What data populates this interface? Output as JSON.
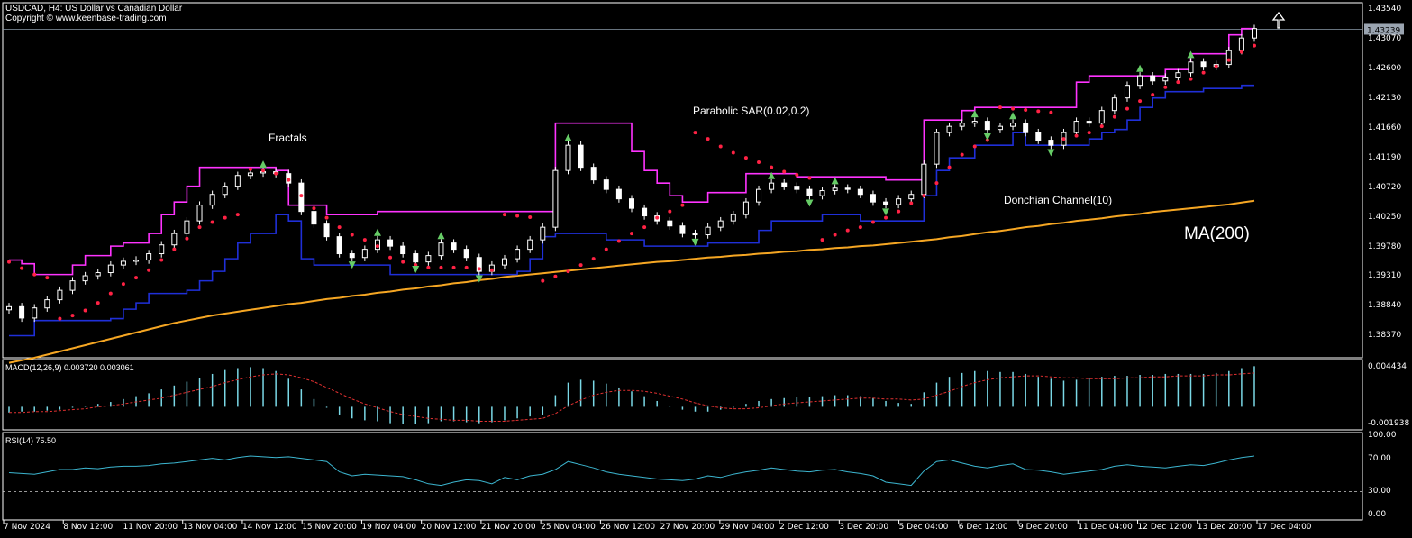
{
  "header": {
    "symbol_line": "USDCAD, H4:  US Dollar vs Canadian Dollar",
    "copyright": "Copyright © www.keenbase-trading.com"
  },
  "annotations": {
    "fractals": "Fractals",
    "parabolic_sar": "Parabolic SAR(0.02,0.2)",
    "donchian": "Donchian Channel(10)",
    "ma200": "MA(200)"
  },
  "colors": {
    "background": "#000000",
    "candle_up": "#ffffff",
    "candle_down": "#ffffff",
    "donchian_upper": "#ff33ff",
    "donchian_lower": "#1f2fd8",
    "sar": "#ff2244",
    "ma200": "#f5a623",
    "fractal": "#66cc66",
    "macd_hist": "#7ad8e6",
    "macd_signal": "#e03030",
    "rsi": "#3cb6d0",
    "annotation_text": "#3fd04f",
    "ma_text": "#f5a623",
    "grid_text": "#ffffff"
  },
  "main_axis": {
    "ticks": [
      "1.43540",
      "1.43070",
      "1.42600",
      "1.42130",
      "1.41660",
      "1.41190",
      "1.40720",
      "1.40250",
      "1.39780",
      "1.39310",
      "1.38840",
      "1.38370"
    ],
    "current_price": "1.43239",
    "range": [
      1.3803,
      1.4366
    ]
  },
  "macd": {
    "label": "MACD(12,26,9) 0.003720 0.003061",
    "max_label": "0.004434",
    "min_label": "-0.001938",
    "range": [
      -0.0022,
      0.0047
    ]
  },
  "rsi": {
    "label": "RSI(14) 75.50",
    "ticks": [
      "100.00",
      "70.00",
      "30.00",
      "0.00"
    ],
    "levels": [
      70,
      30
    ]
  },
  "x_axis": {
    "labels": [
      "7 Nov 2024",
      "8 Nov 12:00",
      "11 Nov 20:00",
      "13 Nov 04:00",
      "14 Nov 12:00",
      "15 Nov 20:00",
      "19 Nov 04:00",
      "20 Nov 12:00",
      "21 Nov 20:00",
      "25 Nov 04:00",
      "26 Nov 12:00",
      "27 Nov 20:00",
      "29 Nov 04:00",
      "2 Dec 12:00",
      "3 Dec 20:00",
      "5 Dec 04:00",
      "6 Dec 12:00",
      "9 Dec 20:00",
      "11 Dec 04:00",
      "12 Dec 12:00",
      "13 Dec 20:00",
      "17 Dec 04:00"
    ]
  },
  "chart_data": {
    "type": "line",
    "title": "USDCAD, H4:  US Dollar vs Canadian Dollar",
    "series": [
      {
        "name": "Close",
        "values": [
          1.3884,
          1.3866,
          1.3882,
          1.3895,
          1.391,
          1.3925,
          1.3933,
          1.3938,
          1.395,
          1.3956,
          1.3958,
          1.3968,
          1.3982,
          1.4,
          1.402,
          1.4045,
          1.4062,
          1.4075,
          1.4092,
          1.4096,
          1.4098,
          1.4095,
          1.408,
          1.4035,
          1.4015,
          1.3995,
          1.3968,
          1.3962,
          1.3975,
          1.399,
          1.398,
          1.3968,
          1.3955,
          1.3965,
          1.3985,
          1.3975,
          1.3962,
          1.394,
          1.395,
          1.396,
          1.3975,
          1.399,
          1.401,
          1.41,
          1.414,
          1.4105,
          1.4085,
          1.407,
          1.4055,
          1.404,
          1.4028,
          1.402,
          1.4012,
          1.4,
          1.3998,
          1.401,
          1.402,
          1.403,
          1.405,
          1.407,
          1.408,
          1.4075,
          1.407,
          1.406,
          1.4068,
          1.4072,
          1.407,
          1.4062,
          1.405,
          1.4046,
          1.4055,
          1.4062,
          1.411,
          1.416,
          1.417,
          1.4175,
          1.4178,
          1.4165,
          1.417,
          1.4175,
          1.416,
          1.4148,
          1.414,
          1.416,
          1.4178,
          1.4175,
          1.4195,
          1.4215,
          1.4235,
          1.425,
          1.4242,
          1.4248,
          1.4255,
          1.4272,
          1.4265,
          1.4268,
          1.429,
          1.431,
          1.4325
        ]
      },
      {
        "name": "Donchian upper",
        "values": [
          1.3958,
          1.3952,
          1.3935,
          1.3935,
          1.3935,
          1.395,
          1.3965,
          1.3965,
          1.398,
          1.3985,
          1.3985,
          1.4,
          1.403,
          1.405,
          1.4075,
          1.4105,
          1.4105,
          1.4105,
          1.4105,
          1.4105,
          1.4105,
          1.41,
          1.4045,
          1.4045,
          1.4045,
          1.403,
          1.403,
          1.403,
          1.403,
          1.4035,
          1.4035,
          1.4035,
          1.4035,
          1.4035,
          1.4035,
          1.4035,
          1.4035,
          1.4035,
          1.4035,
          1.4035,
          1.4035,
          1.4035,
          1.4035,
          1.4175,
          1.4175,
          1.4175,
          1.4175,
          1.4175,
          1.4175,
          1.413,
          1.41,
          1.408,
          1.406,
          1.405,
          1.405,
          1.4065,
          1.4065,
          1.4065,
          1.4095,
          1.4095,
          1.4095,
          1.4095,
          1.409,
          1.409,
          1.409,
          1.409,
          1.409,
          1.409,
          1.409,
          1.4085,
          1.4085,
          1.4085,
          1.418,
          1.418,
          1.418,
          1.4195,
          1.42,
          1.42,
          1.42,
          1.42,
          1.42,
          1.42,
          1.42,
          1.42,
          1.424,
          1.425,
          1.425,
          1.425,
          1.425,
          1.425,
          1.425,
          1.426,
          1.426,
          1.4285,
          1.4285,
          1.4285,
          1.4315,
          1.4325,
          1.4325
        ]
      },
      {
        "name": "Donchian lower",
        "values": [
          1.3838,
          1.3838,
          1.3862,
          1.3862,
          1.3862,
          1.3862,
          1.3862,
          1.3862,
          1.3865,
          1.388,
          1.389,
          1.3905,
          1.3905,
          1.3905,
          1.391,
          1.3925,
          1.394,
          1.396,
          1.3985,
          1.4,
          1.4,
          1.403,
          1.402,
          1.396,
          1.395,
          1.395,
          1.395,
          1.395,
          1.395,
          1.395,
          1.3935,
          1.3935,
          1.3935,
          1.3935,
          1.3935,
          1.3935,
          1.3935,
          1.3935,
          1.3935,
          1.3935,
          1.394,
          1.396,
          1.3995,
          1.4,
          1.4,
          1.4,
          1.4,
          1.399,
          1.399,
          1.399,
          1.398,
          1.398,
          1.398,
          1.398,
          1.398,
          1.3985,
          1.3985,
          1.3985,
          1.3985,
          1.4005,
          1.402,
          1.402,
          1.402,
          1.402,
          1.403,
          1.403,
          1.403,
          1.402,
          1.402,
          1.402,
          1.402,
          1.402,
          1.406,
          1.41,
          1.412,
          1.412,
          1.414,
          1.414,
          1.414,
          1.416,
          1.414,
          1.414,
          1.414,
          1.414,
          1.414,
          1.415,
          1.416,
          1.4165,
          1.418,
          1.42,
          1.4215,
          1.4225,
          1.4225,
          1.4225,
          1.423,
          1.423,
          1.423,
          1.4235,
          1.4235
        ]
      },
      {
        "name": "MA(200)",
        "values": [
          1.3795,
          1.3799,
          1.3803,
          1.3808,
          1.3813,
          1.3818,
          1.3823,
          1.3828,
          1.3833,
          1.3838,
          1.3843,
          1.3848,
          1.3853,
          1.3858,
          1.3862,
          1.3866,
          1.387,
          1.3873,
          1.3876,
          1.3879,
          1.3882,
          1.3885,
          1.3888,
          1.389,
          1.3893,
          1.3896,
          1.3898,
          1.3901,
          1.3903,
          1.3906,
          1.3908,
          1.3911,
          1.3913,
          1.3916,
          1.3918,
          1.3921,
          1.3923,
          1.3926,
          1.3928,
          1.3931,
          1.3933,
          1.3935,
          1.3937,
          1.3939,
          1.3941,
          1.3943,
          1.3945,
          1.3947,
          1.3949,
          1.3951,
          1.3953,
          1.3955,
          1.3956,
          1.3958,
          1.396,
          1.3962,
          1.3963,
          1.3965,
          1.3966,
          1.3968,
          1.3969,
          1.3971,
          1.3972,
          1.3974,
          1.3975,
          1.3977,
          1.3978,
          1.398,
          1.3981,
          1.3983,
          1.3985,
          1.3987,
          1.3989,
          1.3991,
          1.3994,
          1.3996,
          1.3999,
          1.4002,
          1.4004,
          1.4007,
          1.401,
          1.4012,
          1.4015,
          1.4017,
          1.402,
          1.4022,
          1.4024,
          1.4027,
          1.4029,
          1.4031,
          1.4034,
          1.4036,
          1.4038,
          1.404,
          1.4042,
          1.4044,
          1.4046,
          1.4049,
          1.4052
        ]
      },
      {
        "name": "Parabolic SAR",
        "values": [
          1.3955,
          1.3945,
          1.3935,
          1.393,
          1.3865,
          1.387,
          1.3878,
          1.389,
          1.3905,
          1.392,
          1.393,
          1.3942,
          1.3958,
          1.3975,
          1.3992,
          1.401,
          1.4018,
          1.4025,
          1.403,
          1.4102,
          1.41,
          1.4095,
          1.4085,
          1.406,
          1.404,
          1.4025,
          1.401,
          1.3998,
          1.399,
          1.398,
          1.3962,
          1.3955,
          1.395,
          1.3946,
          1.3946,
          1.3946,
          1.3946,
          1.3944,
          1.3942,
          1.403,
          1.4028,
          1.4026,
          1.3925,
          1.3932,
          1.394,
          1.395,
          1.396,
          1.3975,
          1.3988,
          1.4,
          1.401,
          1.4025,
          1.4035,
          1.4045,
          1.416,
          1.415,
          1.4138,
          1.4128,
          1.412,
          1.4113,
          1.4105,
          1.4098,
          1.4093,
          1.4088,
          1.399,
          1.3998,
          1.4005,
          1.401,
          1.4018,
          1.4025,
          1.4035,
          1.4048,
          1.406,
          1.408,
          1.4105,
          1.4125,
          1.4138,
          1.4148,
          1.42,
          1.4198,
          1.4196,
          1.4194,
          1.4192,
          1.415,
          1.4155,
          1.416,
          1.417,
          1.4185,
          1.4198,
          1.421,
          1.422,
          1.4232,
          1.424,
          1.4245,
          1.4255,
          1.4265,
          1.4275,
          1.4288,
          1.4298
        ]
      },
      {
        "name": "MACD",
        "values": [
          -0.0006,
          -0.0005,
          -0.0005,
          -0.0004,
          -0.0003,
          -0.0001,
          0.0001,
          0.0003,
          0.0005,
          0.0008,
          0.0011,
          0.0014,
          0.0018,
          0.0022,
          0.0026,
          0.003,
          0.0034,
          0.0038,
          0.004,
          0.0041,
          0.004,
          0.0037,
          0.0029,
          0.0018,
          0.0008,
          -0.0001,
          -0.0008,
          -0.0012,
          -0.0014,
          -0.0015,
          -0.0017,
          -0.0018,
          -0.0018,
          -0.0017,
          -0.0015,
          -0.0015,
          -0.0016,
          -0.0017,
          -0.0016,
          -0.0014,
          -0.0012,
          -0.001,
          -0.0008,
          0.0012,
          0.0025,
          0.0028,
          0.0027,
          0.0024,
          0.002,
          0.0016,
          0.0011,
          0.0006,
          0.0001,
          -0.0003,
          -0.0005,
          -0.0005,
          -0.0003,
          -0.0001,
          0.0003,
          0.0006,
          0.0008,
          0.0009,
          0.001,
          0.001,
          0.0011,
          0.0012,
          0.0012,
          0.0011,
          0.0009,
          0.0006,
          0.0004,
          0.0003,
          0.0015,
          0.0025,
          0.0031,
          0.0035,
          0.0037,
          0.0037,
          0.0036,
          0.0036,
          0.0034,
          0.0031,
          0.0029,
          0.0027,
          0.0028,
          0.003,
          0.0031,
          0.0032,
          0.0032,
          0.0033,
          0.0033,
          0.0034,
          0.0034,
          0.0034,
          0.0034,
          0.0035,
          0.0037,
          0.004,
          0.0042
        ]
      },
      {
        "name": "MACD signal",
        "values": [
          -0.0006,
          -0.0006,
          -0.0005,
          -0.0005,
          -0.0004,
          -0.0003,
          -0.0002,
          0.0,
          0.0001,
          0.0003,
          0.0005,
          0.0007,
          0.0009,
          0.0012,
          0.0015,
          0.0018,
          0.0021,
          0.0025,
          0.0028,
          0.0031,
          0.0033,
          0.0034,
          0.0033,
          0.003,
          0.0026,
          0.002,
          0.0014,
          0.0008,
          0.0003,
          -0.0001,
          -0.0005,
          -0.0008,
          -0.001,
          -0.0012,
          -0.0013,
          -0.0014,
          -0.0014,
          -0.0015,
          -0.0015,
          -0.0015,
          -0.0014,
          -0.0013,
          -0.0012,
          -0.0007,
          0.0001,
          0.0007,
          0.0012,
          0.0015,
          0.0017,
          0.0017,
          0.0016,
          0.0014,
          0.0011,
          0.0008,
          0.0004,
          0.0001,
          -0.0001,
          -0.0002,
          -0.0002,
          -0.0001,
          0.0001,
          0.0003,
          0.0004,
          0.0005,
          0.0006,
          0.0007,
          0.0008,
          0.0009,
          0.0009,
          0.0008,
          0.0008,
          0.0007,
          0.0008,
          0.0012,
          0.0016,
          0.0021,
          0.0025,
          0.0028,
          0.003,
          0.0031,
          0.0032,
          0.0032,
          0.0031,
          0.003,
          0.003,
          0.0029,
          0.0029,
          0.0029,
          0.003,
          0.003,
          0.0031,
          0.0031,
          0.0032,
          0.0032,
          0.0032,
          0.0033,
          0.0033,
          0.0034,
          0.0035
        ]
      },
      {
        "name": "RSI(14)",
        "values": [
          54,
          53,
          52,
          55,
          58,
          58,
          60,
          59,
          61,
          62,
          62,
          63,
          65,
          66,
          68,
          70,
          72,
          70,
          73,
          75,
          74,
          73,
          74,
          72,
          70,
          68,
          55,
          50,
          52,
          51,
          50,
          49,
          45,
          40,
          38,
          42,
          45,
          44,
          40,
          48,
          45,
          50,
          52,
          58,
          68,
          64,
          60,
          55,
          52,
          50,
          48,
          46,
          45,
          44,
          46,
          50,
          48,
          52,
          55,
          57,
          60,
          58,
          56,
          55,
          57,
          58,
          55,
          53,
          50,
          42,
          40,
          38,
          56,
          68,
          70,
          66,
          62,
          60,
          63,
          65,
          58,
          57,
          55,
          52,
          54,
          56,
          58,
          62,
          64,
          62,
          61,
          60,
          62,
          64,
          63,
          66,
          70,
          73,
          75
        ]
      }
    ],
    "ylim": [
      1.3803,
      1.4366
    ],
    "legend": "none"
  }
}
